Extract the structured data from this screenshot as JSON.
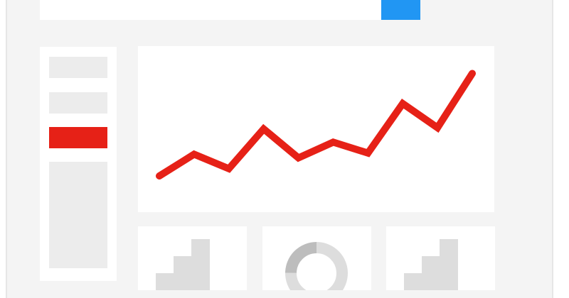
{
  "colors": {
    "background": "#f4f4f4",
    "panel": "#ffffff",
    "placeholder": "#ececec",
    "accent_blue": "#2196f3",
    "accent_red": "#e62117",
    "chart_gray": "#dddddd"
  },
  "search": {
    "value": "",
    "button_icon": "search-icon"
  },
  "sidebar": {
    "items": [
      {
        "state": "normal"
      },
      {
        "state": "normal"
      },
      {
        "state": "active"
      },
      {
        "state": "normal"
      }
    ]
  },
  "chart_data": {
    "type": "line",
    "title": "",
    "xlabel": "",
    "ylabel": "",
    "x": [
      0,
      1,
      2,
      3,
      4,
      5,
      6,
      7,
      8,
      9
    ],
    "series": [
      {
        "values": [
          1.0,
          2.8,
          1.6,
          4.9,
          2.5,
          3.8,
          2.9,
          7.0,
          5.0,
          9.5
        ]
      }
    ],
    "xlim": [
      0,
      9
    ],
    "ylim": [
      0,
      10
    ],
    "grid": false,
    "color": "#e62117"
  },
  "cards": [
    {
      "type": "bar",
      "icon": "bar-chart-icon",
      "values": [
        2,
        4,
        6
      ]
    },
    {
      "type": "donut",
      "icon": "donut-chart-icon",
      "values": [
        75,
        25
      ]
    },
    {
      "type": "bar",
      "icon": "bar-chart-icon",
      "values": [
        2,
        4,
        6
      ]
    }
  ]
}
